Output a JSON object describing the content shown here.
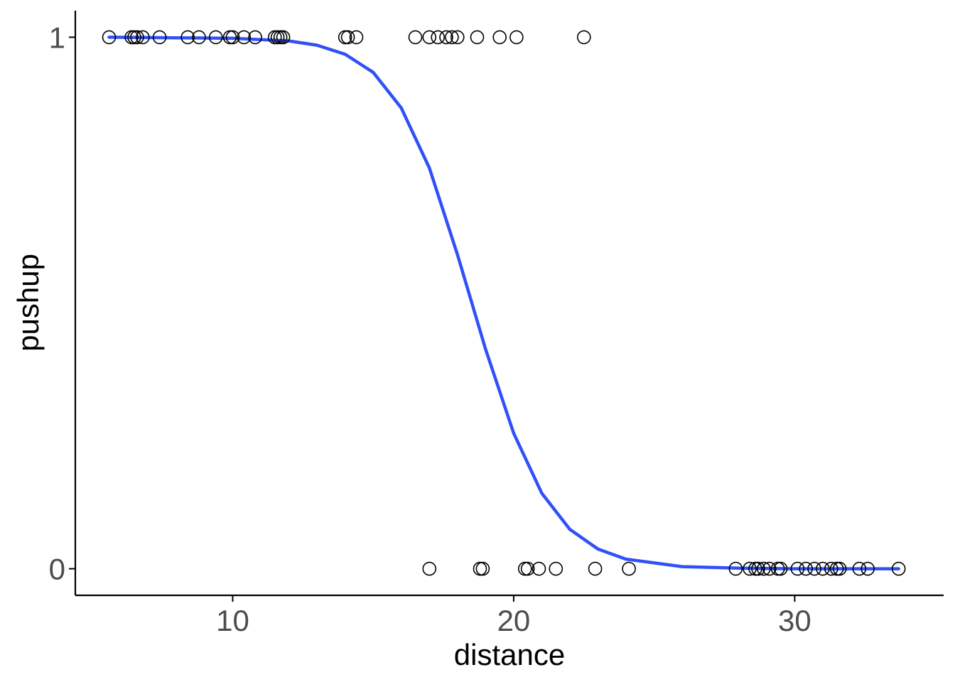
{
  "chart_data": {
    "type": "scatter",
    "xlabel": "distance",
    "ylabel": "pushup",
    "xlim": [
      4.4,
      35.3
    ],
    "ylim": [
      -0.05,
      1.05
    ],
    "x_ticks": [
      10,
      20,
      30
    ],
    "x_tick_labels": [
      "10",
      "20",
      "30"
    ],
    "y_ticks": [
      0,
      1
    ],
    "y_tick_labels": [
      "0",
      "1"
    ],
    "grid": false,
    "legend": "none",
    "point_color": "#000000",
    "curve_color": "#3050F8",
    "points": [
      {
        "x": 5.6,
        "y": 1
      },
      {
        "x": 6.4,
        "y": 1
      },
      {
        "x": 6.5,
        "y": 1
      },
      {
        "x": 6.6,
        "y": 1
      },
      {
        "x": 6.8,
        "y": 1
      },
      {
        "x": 7.4,
        "y": 1
      },
      {
        "x": 8.4,
        "y": 1
      },
      {
        "x": 8.8,
        "y": 1
      },
      {
        "x": 9.4,
        "y": 1
      },
      {
        "x": 9.9,
        "y": 1
      },
      {
        "x": 10.0,
        "y": 1
      },
      {
        "x": 10.4,
        "y": 1
      },
      {
        "x": 10.8,
        "y": 1
      },
      {
        "x": 11.5,
        "y": 1
      },
      {
        "x": 11.6,
        "y": 1
      },
      {
        "x": 11.7,
        "y": 1
      },
      {
        "x": 11.8,
        "y": 1
      },
      {
        "x": 14.0,
        "y": 1
      },
      {
        "x": 14.1,
        "y": 1
      },
      {
        "x": 14.4,
        "y": 1
      },
      {
        "x": 16.5,
        "y": 1
      },
      {
        "x": 17.0,
        "y": 1
      },
      {
        "x": 17.3,
        "y": 1
      },
      {
        "x": 17.6,
        "y": 1
      },
      {
        "x": 17.8,
        "y": 1
      },
      {
        "x": 18.0,
        "y": 1
      },
      {
        "x": 18.7,
        "y": 1
      },
      {
        "x": 19.5,
        "y": 1
      },
      {
        "x": 20.1,
        "y": 1
      },
      {
        "x": 22.5,
        "y": 1
      },
      {
        "x": 17.0,
        "y": 0
      },
      {
        "x": 18.8,
        "y": 0
      },
      {
        "x": 18.9,
        "y": 0
      },
      {
        "x": 20.4,
        "y": 0
      },
      {
        "x": 20.5,
        "y": 0
      },
      {
        "x": 20.9,
        "y": 0
      },
      {
        "x": 21.5,
        "y": 0
      },
      {
        "x": 22.9,
        "y": 0
      },
      {
        "x": 24.1,
        "y": 0
      },
      {
        "x": 27.9,
        "y": 0
      },
      {
        "x": 28.4,
        "y": 0
      },
      {
        "x": 28.6,
        "y": 0
      },
      {
        "x": 28.7,
        "y": 0
      },
      {
        "x": 28.9,
        "y": 0
      },
      {
        "x": 29.1,
        "y": 0
      },
      {
        "x": 29.4,
        "y": 0
      },
      {
        "x": 29.5,
        "y": 0
      },
      {
        "x": 30.1,
        "y": 0
      },
      {
        "x": 30.4,
        "y": 0
      },
      {
        "x": 30.7,
        "y": 0
      },
      {
        "x": 31.0,
        "y": 0
      },
      {
        "x": 31.3,
        "y": 0
      },
      {
        "x": 31.5,
        "y": 0
      },
      {
        "x": 31.6,
        "y": 0
      },
      {
        "x": 32.3,
        "y": 0
      },
      {
        "x": 32.6,
        "y": 0
      },
      {
        "x": 33.7,
        "y": 0
      }
    ],
    "fit_curve": {
      "type": "logistic",
      "x_range": [
        5.6,
        33.7
      ],
      "points": [
        {
          "x": 5.6,
          "y": 1.0
        },
        {
          "x": 8,
          "y": 0.999
        },
        {
          "x": 10,
          "y": 0.998
        },
        {
          "x": 12,
          "y": 0.993
        },
        {
          "x": 13,
          "y": 0.985
        },
        {
          "x": 14,
          "y": 0.968
        },
        {
          "x": 15,
          "y": 0.934
        },
        {
          "x": 16,
          "y": 0.867
        },
        {
          "x": 17,
          "y": 0.754
        },
        {
          "x": 18,
          "y": 0.591
        },
        {
          "x": 19,
          "y": 0.413
        },
        {
          "x": 20,
          "y": 0.255
        },
        {
          "x": 21,
          "y": 0.142
        },
        {
          "x": 22,
          "y": 0.074
        },
        {
          "x": 23,
          "y": 0.037
        },
        {
          "x": 24,
          "y": 0.018
        },
        {
          "x": 26,
          "y": 0.004
        },
        {
          "x": 28,
          "y": 0.001
        },
        {
          "x": 30,
          "y": 0.0
        },
        {
          "x": 33.7,
          "y": 0.0
        }
      ]
    }
  }
}
